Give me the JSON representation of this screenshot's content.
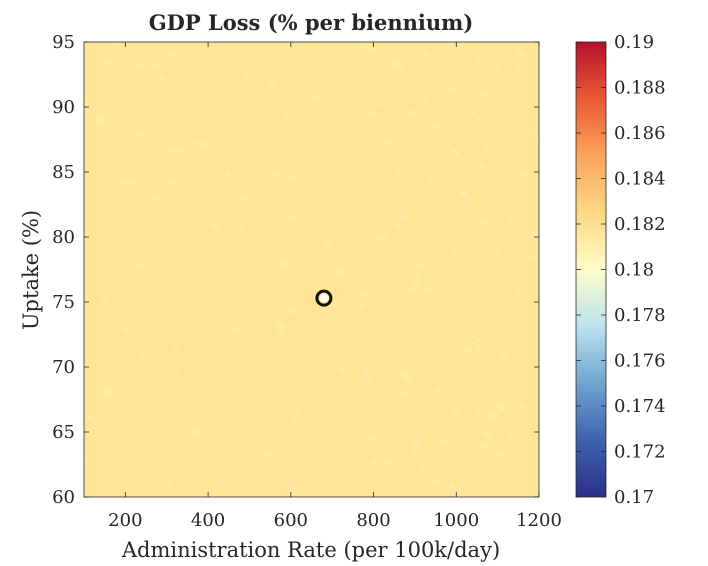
{
  "chart_data": {
    "type": "heatmap",
    "title": "GDP Loss (% per biennium)",
    "xlabel": "Administration Rate (per 100k/day)",
    "ylabel": "Uptake (%)",
    "xlim": [
      100,
      1200
    ],
    "ylim": [
      60,
      95
    ],
    "xticks": [
      200,
      400,
      600,
      800,
      1000,
      1200
    ],
    "yticks": [
      60,
      65,
      70,
      75,
      80,
      85,
      90,
      95
    ],
    "field_value": 0.1825,
    "marker": {
      "x": 680,
      "y": 75.3,
      "label": ""
    },
    "colorbar": {
      "range": [
        0.17,
        0.19
      ],
      "ticks": [
        "0.17",
        "0.172",
        "0.174",
        "0.176",
        "0.178",
        "0.18",
        "0.182",
        "0.184",
        "0.186",
        "0.188",
        "0.19"
      ],
      "colormap": [
        "#2b2f8c",
        "#3e62ad",
        "#70a4cf",
        "#bce2ee",
        "#fdfdc9",
        "#fdd885",
        "#fba45a",
        "#ea5a35",
        "#b5112b"
      ]
    },
    "field_color": "#fee597",
    "speckle_color": "#fdefae"
  }
}
